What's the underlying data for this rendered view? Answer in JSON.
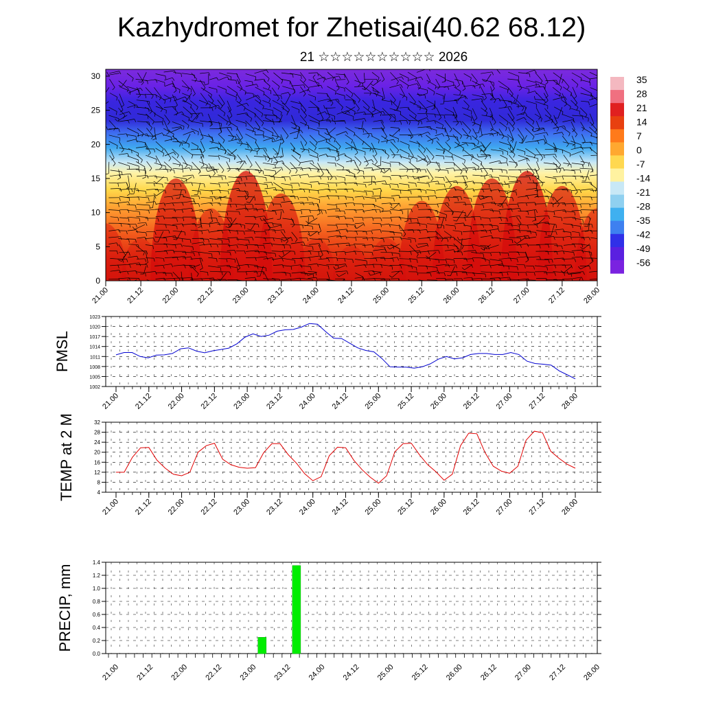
{
  "header": {
    "title": "Kazhydromet for Zhetisai(40.62 68.12)",
    "subtitle": "21 ☆☆☆☆☆☆☆☆☆☆ 2026"
  },
  "time_labels": [
    "21.00",
    "21.12",
    "22.00",
    "22.12",
    "23.00",
    "23.12",
    "24.00",
    "24.12",
    "25.00",
    "25.12",
    "26.00",
    "26.12",
    "27.00",
    "27.12",
    "28.00"
  ],
  "colorbar": {
    "labels": [
      "35",
      "28",
      "21",
      "14",
      "7",
      "0",
      "-7",
      "-14",
      "-21",
      "-28",
      "-35",
      "-42",
      "-49",
      "-56"
    ],
    "colors": {
      "hot": "#d40000",
      "warm": "#ff8c1a",
      "mild": "#ffe680",
      "cool": "#c8e6f5",
      "cold": "#1e88e5",
      "frigid": "#2a1ee0",
      "purple": "#7a22e0"
    }
  },
  "chart_data": [
    {
      "type": "heatmap",
      "name": "vertical-cross-section",
      "title": "Kazhydromet for Zhetisai(40.62 68.12)",
      "ylabel": "",
      "ylim": [
        0,
        31
      ],
      "yticks": [
        "0",
        "5",
        "10",
        "15",
        "20",
        "25",
        "30"
      ],
      "x": [
        "21.00",
        "21.12",
        "22.00",
        "22.12",
        "23.00",
        "23.12",
        "24.00",
        "24.12",
        "25.00",
        "25.12",
        "26.00",
        "26.12",
        "27.00",
        "27.12",
        "28.00"
      ],
      "value_range": [
        -56,
        35
      ],
      "temp_at_level_0": [
        28,
        26,
        34,
        30,
        35,
        32,
        26,
        25,
        26,
        31,
        33,
        34,
        35,
        33,
        30
      ]
    },
    {
      "type": "line",
      "name": "pmsl",
      "ylabel": "PMSL",
      "ylim": [
        1002,
        1023
      ],
      "yticks": [
        "1002",
        "1005",
        "1008",
        "1011",
        "1014",
        "1017",
        "1020",
        "1023"
      ],
      "values": [
        1011.5,
        1012.2,
        1012.2,
        1011,
        1010.6,
        1011.4,
        1011.5,
        1011.9,
        1013.3,
        1013.6,
        1012.6,
        1012.1,
        1012.7,
        1013.1,
        1013.5,
        1014.8,
        1016.8,
        1017.8,
        1017,
        1017.4,
        1018.6,
        1019,
        1019.1,
        1019.8,
        1020.9,
        1020.7,
        1018.5,
        1016.5,
        1016.4,
        1015,
        1013.6,
        1012.8,
        1012.4,
        1010.4,
        1007.9,
        1007.8,
        1007.8,
        1007.5,
        1007.9,
        1008.8,
        1010.2,
        1011,
        1010.3,
        1010.6,
        1011.6,
        1011.9,
        1011.9,
        1011.6,
        1011.6,
        1012.2,
        1011.6,
        1009.6,
        1008.9,
        1008.7,
        1008.4,
        1006.7,
        1005.5,
        1004.3
      ],
      "color": "#0000d0"
    },
    {
      "type": "line",
      "name": "temp-2m",
      "ylabel": "TEMP at 2 M",
      "ylim": [
        4,
        32
      ],
      "yticks": [
        "4",
        "8",
        "12",
        "16",
        "20",
        "24",
        "28",
        "32"
      ],
      "values": [
        12,
        12,
        18,
        21.8,
        21.9,
        16.8,
        13.6,
        11.2,
        10.6,
        12,
        20,
        22.6,
        23.6,
        17.2,
        15,
        14,
        13.6,
        13.8,
        19.8,
        23.4,
        23.4,
        19,
        15.6,
        11.4,
        8.6,
        10.2,
        18.6,
        22,
        21.8,
        16.8,
        13,
        10,
        7.6,
        10.6,
        20.2,
        23.4,
        23.6,
        19,
        15,
        12.2,
        8.8,
        11.2,
        22.6,
        27.6,
        27.4,
        19.8,
        14.4,
        12.4,
        11.6,
        14.4,
        24.8,
        28.4,
        27.8,
        20.4,
        17.6,
        15.2,
        13.6
      ],
      "color": "#e00000"
    },
    {
      "type": "bar",
      "name": "precip",
      "ylabel": "PRECIP, mm",
      "ylim": [
        0,
        1.4
      ],
      "yticks": [
        "0.0",
        "0.2",
        "0.4",
        "0.6",
        "0.8",
        "1.0",
        "1.2",
        "1.4"
      ],
      "x": [
        "23.03",
        "23.15"
      ],
      "values": [
        0.25,
        1.35
      ],
      "color": "#00ee00"
    }
  ]
}
